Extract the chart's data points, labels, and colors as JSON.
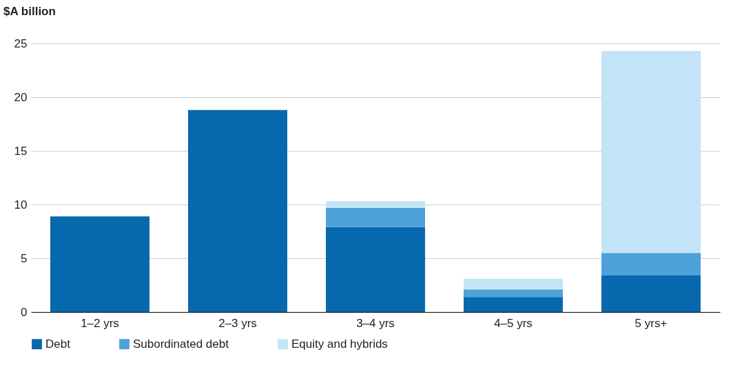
{
  "chart_data": {
    "type": "bar",
    "ylabel": "$A billion",
    "categories": [
      "1–2 yrs",
      "2–3 yrs",
      "3–4 yrs",
      "4–5 yrs",
      "5 yrs+"
    ],
    "stacked": true,
    "series": [
      {
        "name": "Debt",
        "color": "#0868ae",
        "values": [
          8.9,
          18.8,
          7.9,
          1.4,
          3.4
        ]
      },
      {
        "name": "Subordinated debt",
        "color": "#4ea1d9",
        "values": [
          null,
          null,
          1.8,
          0.7,
          2.1
        ]
      },
      {
        "name": "Equity and hybrids",
        "color": "#c3e4f7",
        "values": [
          null,
          null,
          0.6,
          1.0,
          18.8
        ]
      }
    ],
    "ylim": [
      0,
      25
    ],
    "yticks": [
      0,
      5,
      10,
      15,
      20,
      25
    ],
    "grid": "y",
    "legend": "bottom"
  }
}
